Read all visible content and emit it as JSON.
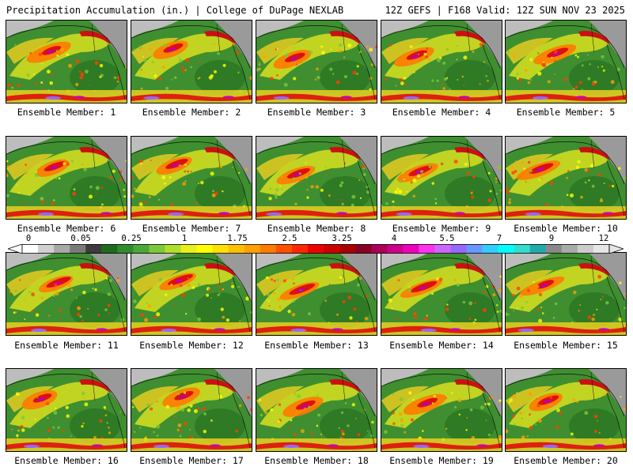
{
  "header": {
    "left": "Precipitation Accumulation (in.) | College of DuPage NEXLAB",
    "right": "12Z GEFS | F168 Valid: 12Z SUN NOV 23 2025"
  },
  "members": [
    {
      "label": "Ensemble Member: 1"
    },
    {
      "label": "Ensemble Member: 2"
    },
    {
      "label": "Ensemble Member: 3"
    },
    {
      "label": "Ensemble Member: 4"
    },
    {
      "label": "Ensemble Member: 5"
    },
    {
      "label": "Ensemble Member: 6"
    },
    {
      "label": "Ensemble Member: 7"
    },
    {
      "label": "Ensemble Member: 8"
    },
    {
      "label": "Ensemble Member: 9"
    },
    {
      "label": "Ensemble Member: 10"
    },
    {
      "label": "Ensemble Member: 11"
    },
    {
      "label": "Ensemble Member: 12"
    },
    {
      "label": "Ensemble Member: 13"
    },
    {
      "label": "Ensemble Member: 14"
    },
    {
      "label": "Ensemble Member: 15"
    },
    {
      "label": "Ensemble Member: 16"
    },
    {
      "label": "Ensemble Member: 17"
    },
    {
      "label": "Ensemble Member: 18"
    },
    {
      "label": "Ensemble Member: 19"
    },
    {
      "label": "Ensemble Member: 20"
    }
  ],
  "colorbar": {
    "ticks": [
      "0",
      "0.05",
      "0.25",
      "1",
      "1.75",
      "2.5",
      "3.25",
      "4",
      "5.5",
      "7",
      "9",
      "12"
    ],
    "colors": [
      "#ffffff",
      "#d0d0d0",
      "#a8a8a8",
      "#7a7a7a",
      "#3c3c3c",
      "#1e6b1e",
      "#2e8b2e",
      "#4aa838",
      "#7cc83a",
      "#b0de2a",
      "#e8f018",
      "#ffff00",
      "#ffe000",
      "#ffc000",
      "#ffa000",
      "#ff7a00",
      "#ff5000",
      "#ff2800",
      "#ee0000",
      "#cc0000",
      "#aa0000",
      "#880022",
      "#aa0055",
      "#cc0088",
      "#ee00bb",
      "#ff33ee",
      "#cc66ff",
      "#9966ff",
      "#6699ff",
      "#33ccff",
      "#00ffff",
      "#33ddcc",
      "#22aaaa",
      "#888888",
      "#aaaaaa",
      "#cccccc",
      "#e6e6e6"
    ]
  }
}
